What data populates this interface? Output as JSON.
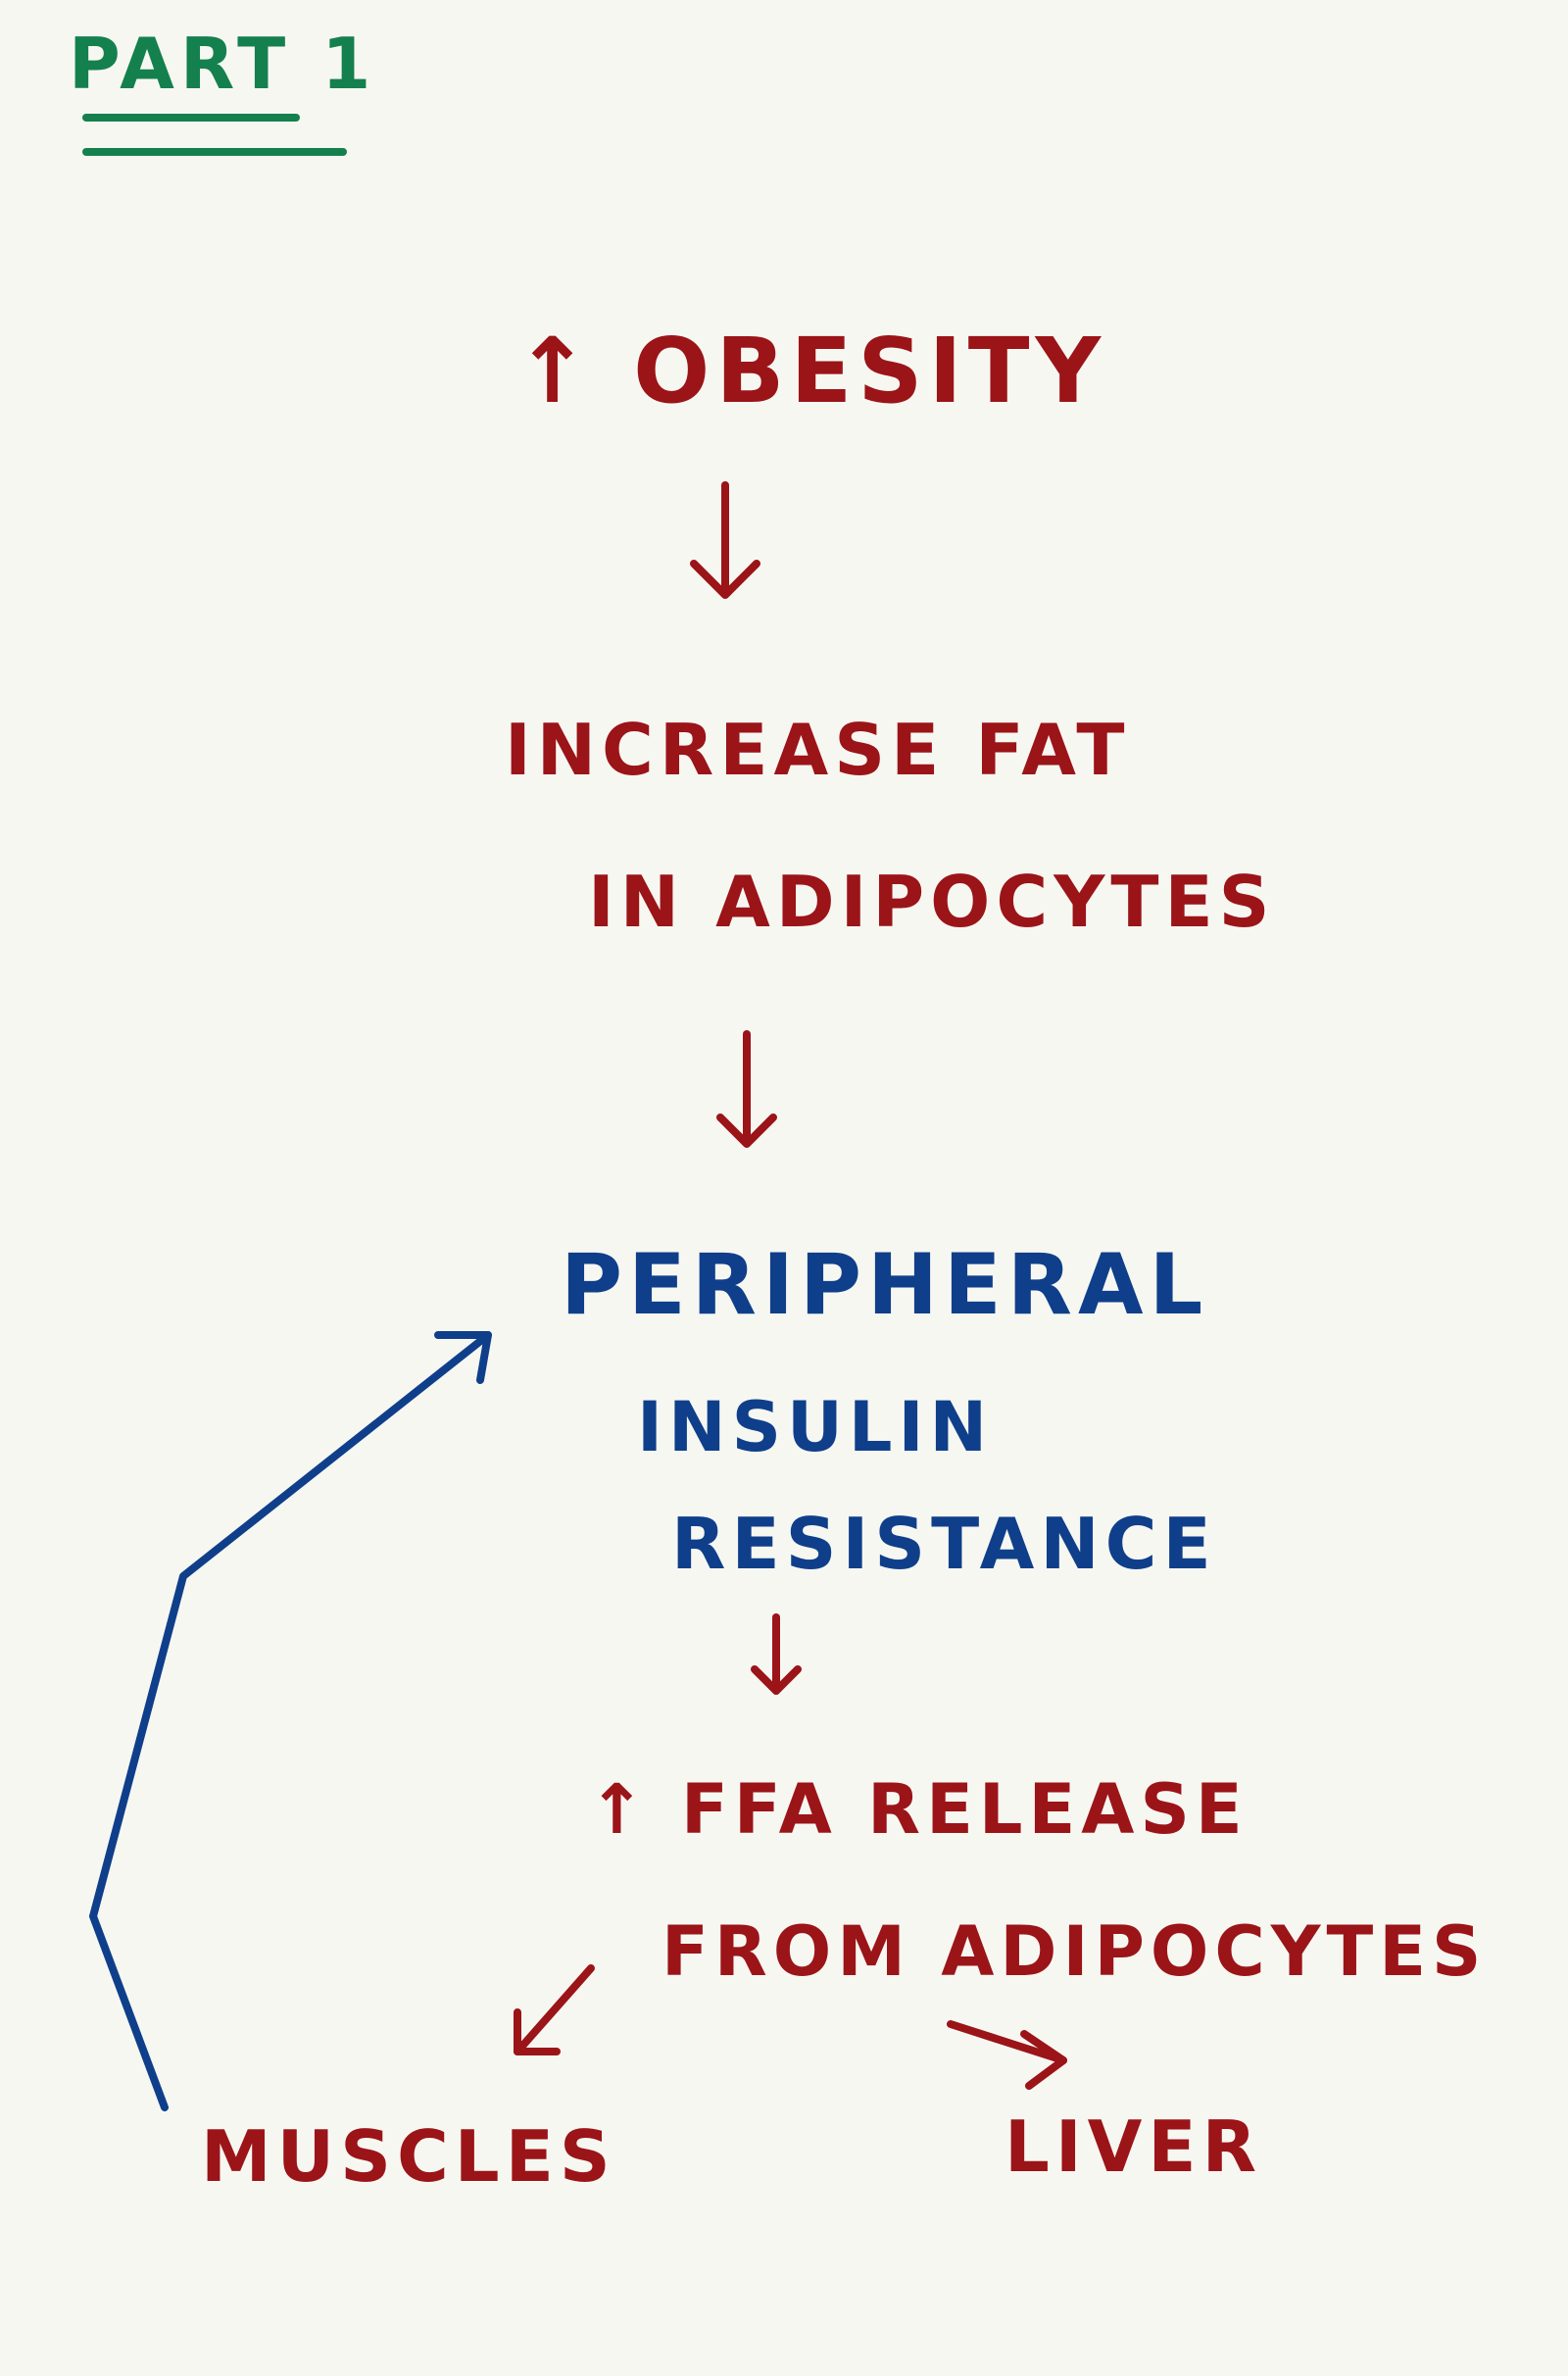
{
  "heading": {
    "text": "PART 1",
    "color": "#14804e"
  },
  "nodes": {
    "obesity": {
      "text": "↑ OBESITY",
      "color": "#9b1418"
    },
    "increase_fat_line1": {
      "text": "INCREASE FAT",
      "color": "#9b1418"
    },
    "increase_fat_line2": {
      "text": "IN ADIPOCYTES",
      "color": "#9b1418"
    },
    "insulin_line1": {
      "text": "PERIPHERAL",
      "color": "#0f3f8a"
    },
    "insulin_line2": {
      "text": "INSULIN",
      "color": "#0f3f8a"
    },
    "insulin_line3": {
      "text": "RESISTANCE",
      "color": "#0f3f8a"
    },
    "ffa_line1": {
      "text": "↑ FFA RELEASE",
      "color": "#9b1418"
    },
    "ffa_line2": {
      "text": "FROM ADIPOCYTES",
      "color": "#9b1418"
    },
    "muscles": {
      "text": "MUSCLES",
      "color": "#9b1418"
    },
    "liver": {
      "text": "LIVER",
      "color": "#9b1418"
    }
  }
}
